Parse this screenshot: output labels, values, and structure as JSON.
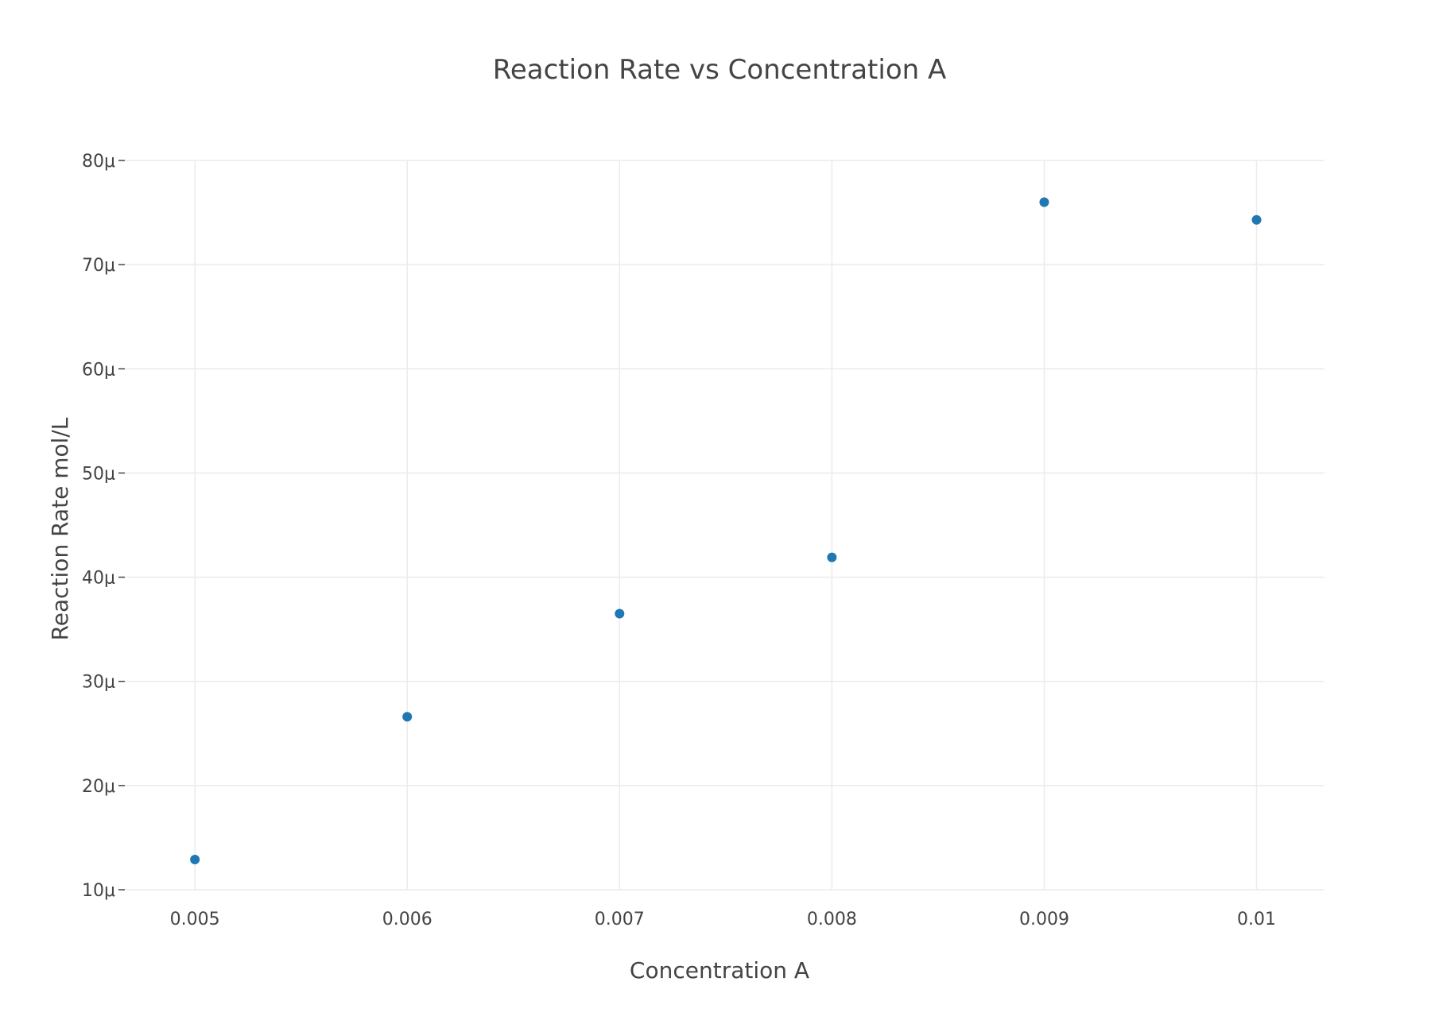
{
  "chart_data": {
    "type": "scatter",
    "title": "Reaction Rate vs Concentration A",
    "xlabel": "Concentration A",
    "ylabel": "Reaction Rate mol/L",
    "x": [
      0.005,
      0.006,
      0.007,
      0.008,
      0.009,
      0.01
    ],
    "y": [
      1.29e-05,
      2.66e-05,
      3.65e-05,
      4.19e-05,
      7.6e-05,
      7.43e-05
    ],
    "xlim": [
      0.00467,
      0.01032
    ],
    "ylim": [
      1e-05,
      8e-05
    ],
    "x_ticks": [
      0.005,
      0.006,
      0.007,
      0.008,
      0.009,
      0.01
    ],
    "x_tick_labels": [
      "0.005",
      "0.006",
      "0.007",
      "0.008",
      "0.009",
      "0.01"
    ],
    "y_ticks": [
      1e-05,
      2e-05,
      3e-05,
      4e-05,
      5e-05,
      6e-05,
      7e-05,
      8e-05
    ],
    "y_tick_labels": [
      "10μ",
      "20μ",
      "30μ",
      "40μ",
      "50μ",
      "60μ",
      "70μ",
      "80μ"
    ],
    "grid": true,
    "legend": "none",
    "marker_color": "#1f77b4"
  }
}
